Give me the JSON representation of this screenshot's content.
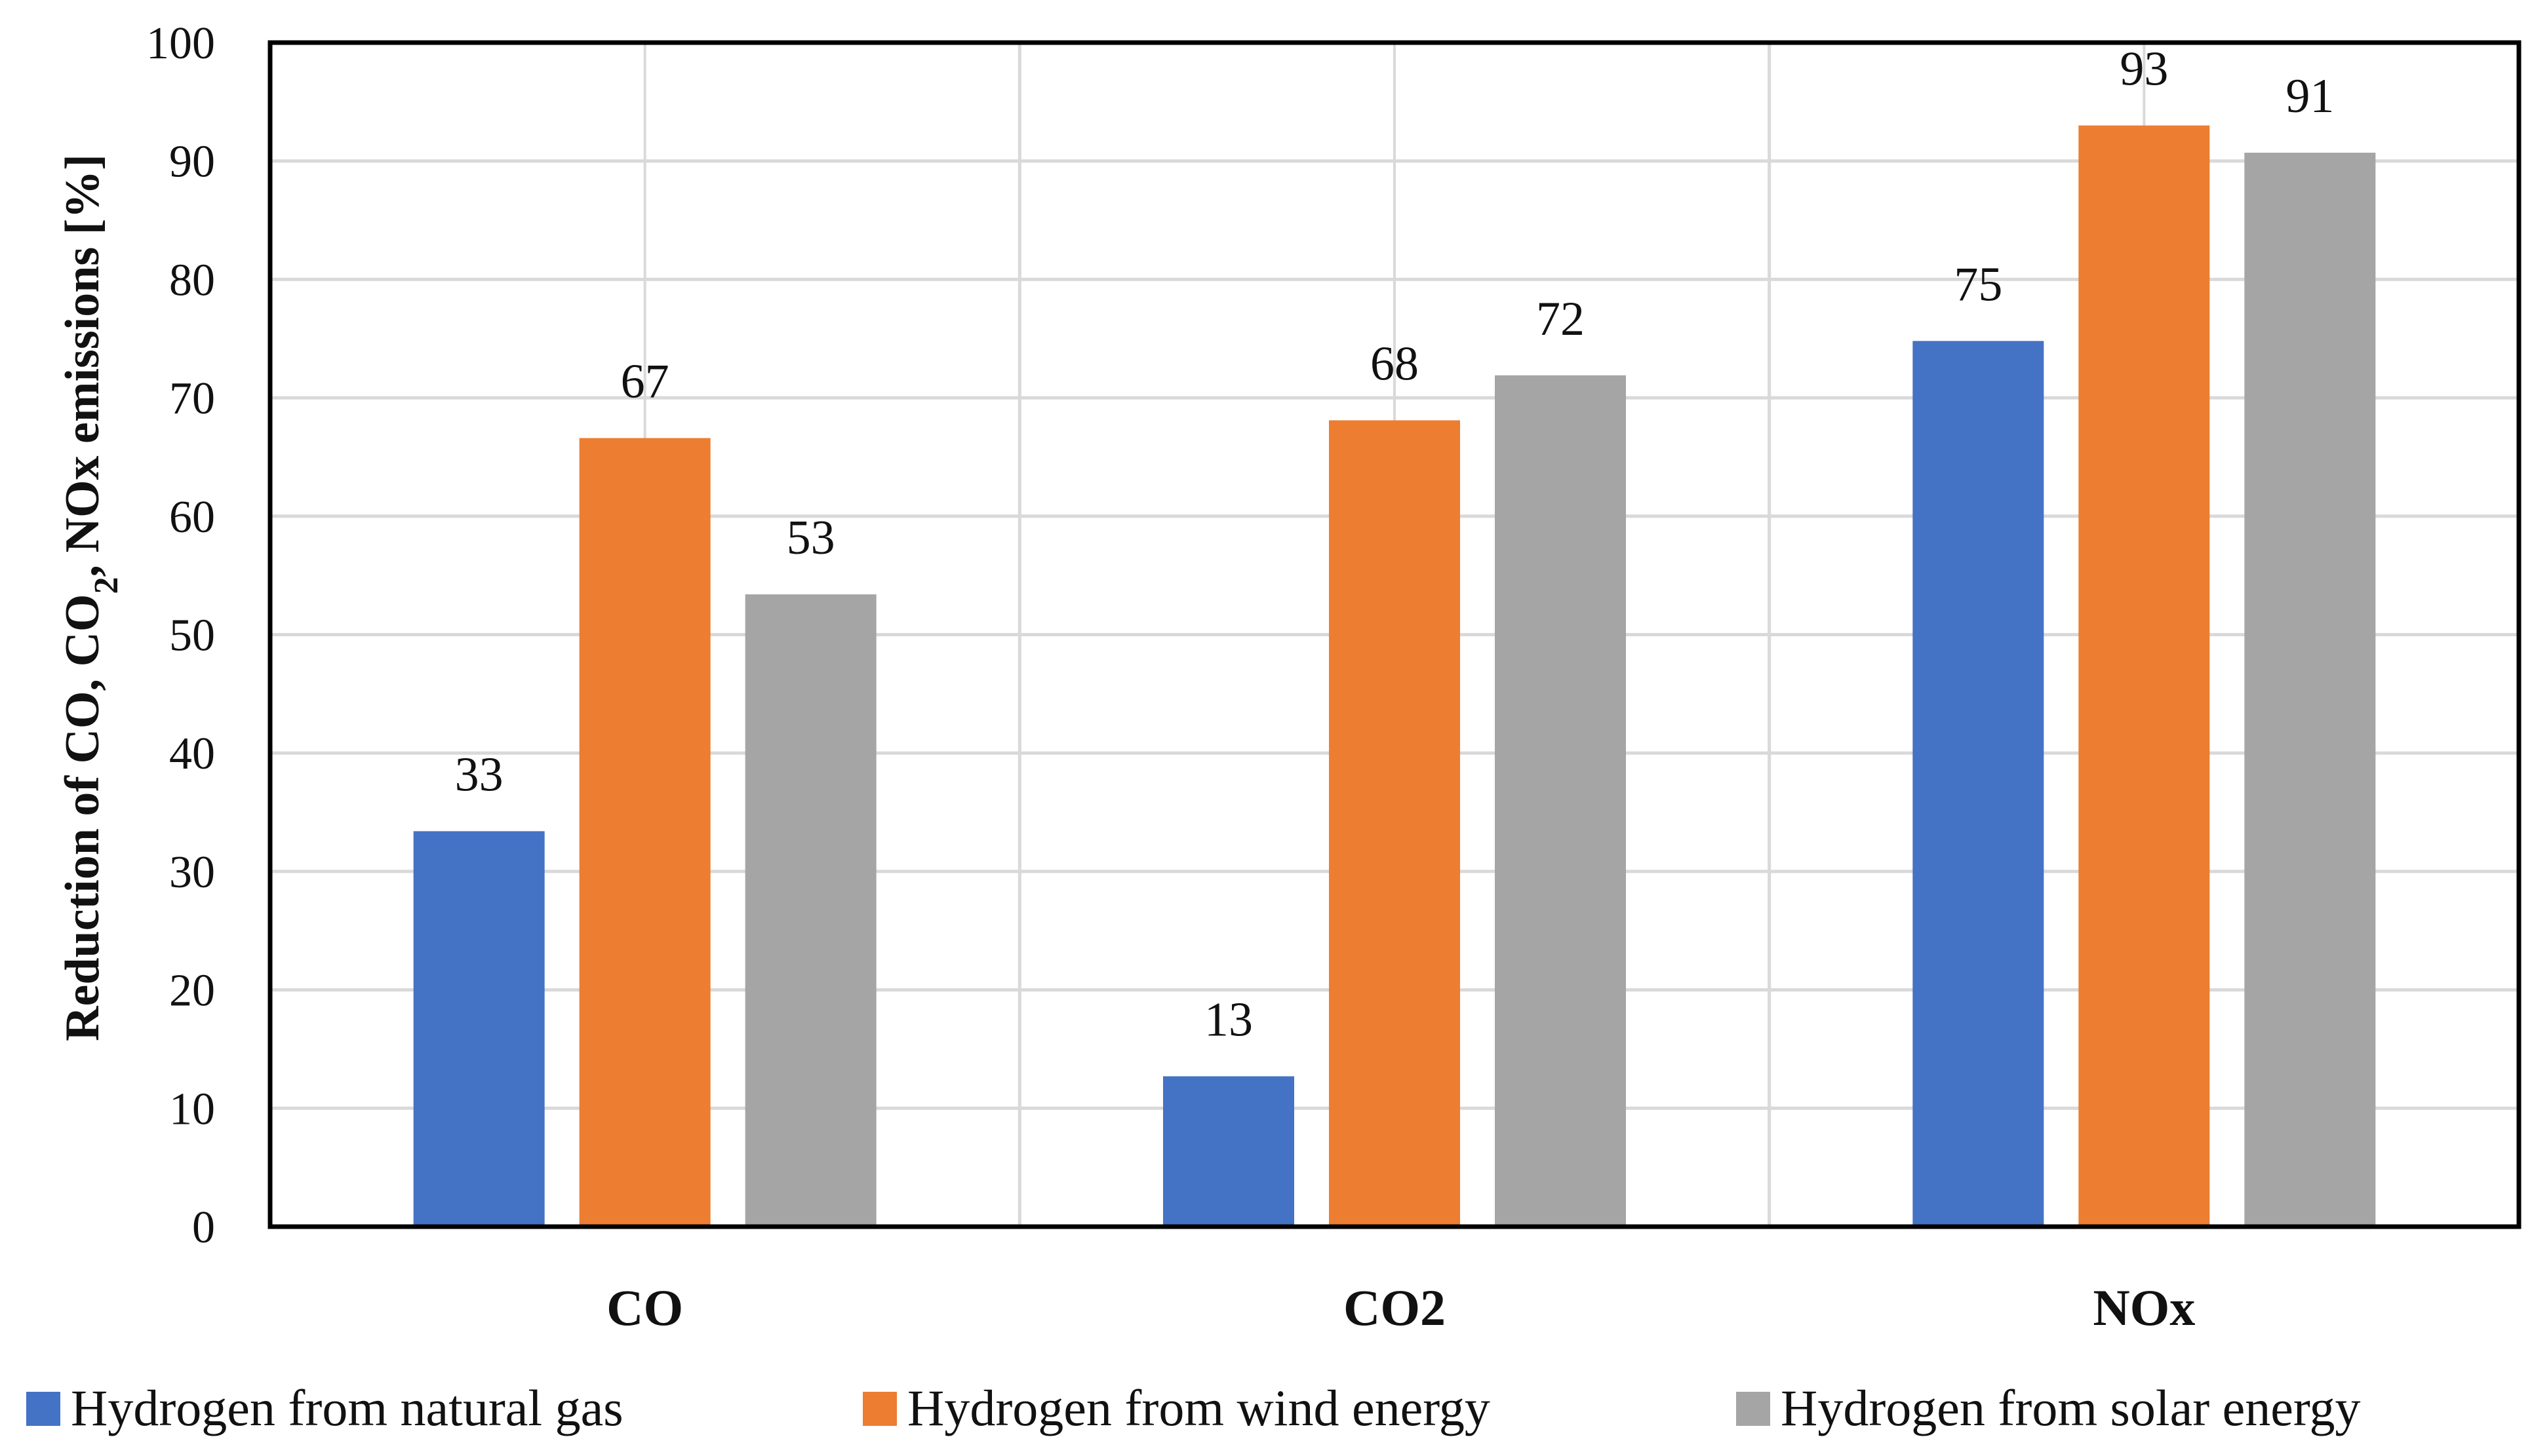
{
  "chart_data": {
    "type": "bar",
    "title": "",
    "xlabel": "",
    "ylabel_parts": [
      "Reduction of CO, CO",
      "2",
      ", NOx emissions [%]"
    ],
    "ylim": [
      0,
      100
    ],
    "yticks": [
      0,
      10,
      20,
      30,
      40,
      50,
      60,
      70,
      80,
      90,
      100
    ],
    "grid": true,
    "legend_position": "bottom",
    "categories": [
      "CO",
      "CO2",
      "NOx"
    ],
    "series": [
      {
        "name": "Hydrogen from natural gas",
        "color": "#4472C4",
        "values": [
          33.4,
          12.7,
          74.8
        ],
        "labels": [
          "33",
          "13",
          "75"
        ]
      },
      {
        "name": "Hydrogen from wind energy",
        "color": "#ED7D31",
        "values": [
          66.6,
          68.1,
          93.0
        ],
        "labels": [
          "67",
          "68",
          "93"
        ]
      },
      {
        "name": "Hydrogen from solar energy",
        "color": "#A5A5A5",
        "values": [
          53.4,
          71.9,
          90.7
        ],
        "labels": [
          "53",
          "72",
          "91"
        ]
      }
    ]
  }
}
